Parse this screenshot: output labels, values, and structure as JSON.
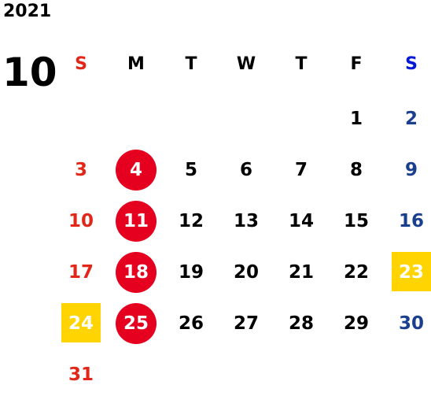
{
  "year": "2021",
  "month": "10",
  "colors": {
    "sunday": "#e1271a",
    "saturday": "#1b3f8f",
    "weekday": "#000000",
    "holiday_circle": "#e60020",
    "highlight_box": "#ffd400",
    "header_saturday": "#0019d6"
  },
  "weekdays": [
    "S",
    "M",
    "T",
    "W",
    "T",
    "F",
    "S"
  ],
  "weeks": [
    [
      {
        "d": ""
      },
      {
        "d": ""
      },
      {
        "d": ""
      },
      {
        "d": ""
      },
      {
        "d": ""
      },
      {
        "d": "1"
      },
      {
        "d": "2"
      }
    ],
    [
      {
        "d": "3"
      },
      {
        "d": "4",
        "mark": "circle"
      },
      {
        "d": "5"
      },
      {
        "d": "6"
      },
      {
        "d": "7"
      },
      {
        "d": "8"
      },
      {
        "d": "9"
      }
    ],
    [
      {
        "d": "10"
      },
      {
        "d": "11",
        "mark": "circle"
      },
      {
        "d": "12"
      },
      {
        "d": "13"
      },
      {
        "d": "14"
      },
      {
        "d": "15"
      },
      {
        "d": "16"
      }
    ],
    [
      {
        "d": "17"
      },
      {
        "d": "18",
        "mark": "circle"
      },
      {
        "d": "19"
      },
      {
        "d": "20"
      },
      {
        "d": "21"
      },
      {
        "d": "22"
      },
      {
        "d": "23",
        "mark": "box"
      }
    ],
    [
      {
        "d": "24",
        "mark": "box"
      },
      {
        "d": "25",
        "mark": "circle"
      },
      {
        "d": "26"
      },
      {
        "d": "27"
      },
      {
        "d": "28"
      },
      {
        "d": "29"
      },
      {
        "d": "30"
      }
    ],
    [
      {
        "d": "31"
      },
      {
        "d": ""
      },
      {
        "d": ""
      },
      {
        "d": ""
      },
      {
        "d": ""
      },
      {
        "d": ""
      },
      {
        "d": ""
      }
    ]
  ]
}
